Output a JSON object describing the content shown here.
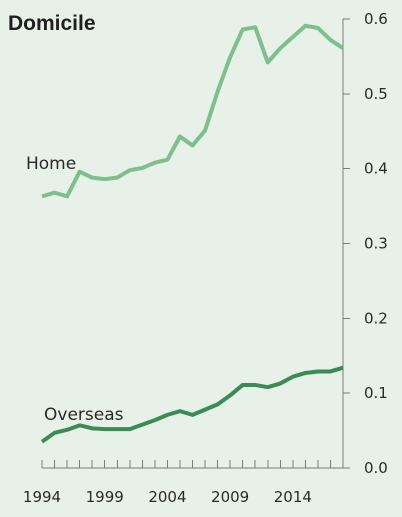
{
  "chart_data": {
    "type": "line",
    "title": "Domicile",
    "x": [
      1994,
      1995,
      1996,
      1997,
      1998,
      1999,
      2000,
      2001,
      2002,
      2003,
      2004,
      2005,
      2006,
      2007,
      2008,
      2009,
      2010,
      2011,
      2012,
      2013,
      2014,
      2015,
      2016,
      2017,
      2018
    ],
    "x_ticks": [
      1994,
      1999,
      2004,
      2009,
      2014
    ],
    "xlim": [
      1994,
      2018
    ],
    "y_ticks": [
      "0.0",
      "0.1",
      "0.2",
      "0.3",
      "0.4",
      "0.5",
      "0.6"
    ],
    "ylim": [
      0,
      0.6
    ],
    "grid": false,
    "y_axis_position": "right",
    "series": [
      {
        "name": "Home",
        "color": "#7ebe8f",
        "values": [
          0.363,
          0.368,
          0.363,
          0.396,
          0.388,
          0.386,
          0.388,
          0.398,
          0.401,
          0.408,
          0.412,
          0.443,
          0.431,
          0.451,
          0.503,
          0.549,
          0.586,
          0.589,
          0.542,
          0.561,
          0.576,
          0.591,
          0.588,
          0.572,
          0.561
        ]
      },
      {
        "name": "Overseas",
        "color": "#3c8a58",
        "values": [
          0.035,
          0.047,
          0.051,
          0.057,
          0.053,
          0.052,
          0.052,
          0.052,
          0.058,
          0.064,
          0.071,
          0.076,
          0.071,
          0.078,
          0.085,
          0.097,
          0.111,
          0.111,
          0.108,
          0.113,
          0.122,
          0.127,
          0.129,
          0.129,
          0.134
        ]
      }
    ]
  }
}
